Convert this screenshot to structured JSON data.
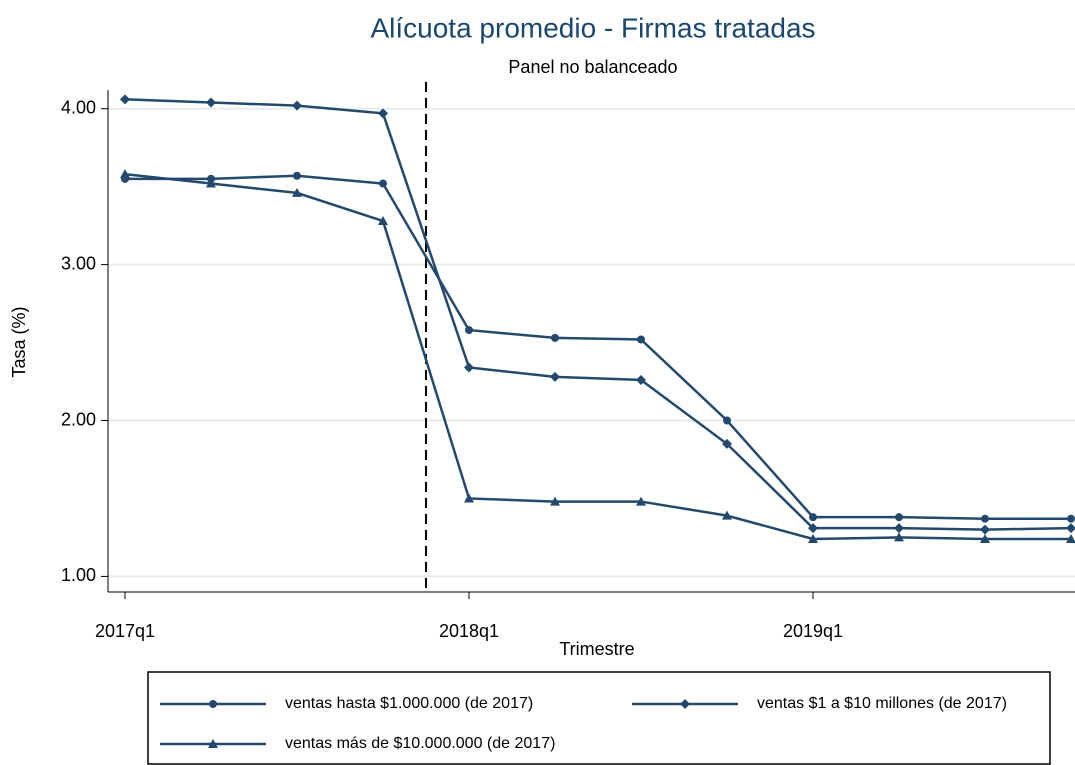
{
  "chart_data": {
    "type": "line",
    "title": "Alícuota promedio - Firmas tratadas",
    "subtitle": "Panel no balanceado",
    "x_label": "Trimestre",
    "y_label": "Tasa (%)",
    "categories": [
      "2017q1",
      null,
      null,
      null,
      "2018q1",
      null,
      null,
      null,
      "2019q1",
      null,
      null,
      null
    ],
    "series": [
      {
        "name": "ventas hasta $1.000.000 (de 2017)",
        "color": "#24496e",
        "marker": "circle",
        "values": [
          3.55,
          3.55,
          3.57,
          3.52,
          2.58,
          2.53,
          2.52,
          2.0,
          1.38,
          1.38,
          1.37,
          1.37
        ]
      },
      {
        "name": "ventas $1 a $10 millones (de 2017)",
        "color": "#24496e",
        "marker": "diamond",
        "values": [
          4.06,
          4.04,
          4.02,
          3.97,
          2.34,
          2.28,
          2.26,
          1.85,
          1.31,
          1.31,
          1.3,
          1.31
        ]
      },
      {
        "name": "ventas más de $10.000.000 (de 2017)",
        "color": "#24496e",
        "marker": "triangle",
        "values": [
          3.58,
          3.52,
          3.46,
          3.28,
          1.5,
          1.48,
          1.48,
          1.39,
          1.24,
          1.25,
          1.24,
          1.24
        ]
      }
    ],
    "ylim": [
      0.9,
      4.12
    ],
    "yticks": [
      {
        "value": 1,
        "label": "1.00"
      },
      {
        "value": 2,
        "label": "2.00"
      },
      {
        "value": 3,
        "label": "3.00"
      },
      {
        "value": 4,
        "label": "4.00"
      }
    ],
    "grid": true,
    "reference_line": {
      "x": 3.5,
      "style": "dashed"
    },
    "legend": "bottom"
  }
}
